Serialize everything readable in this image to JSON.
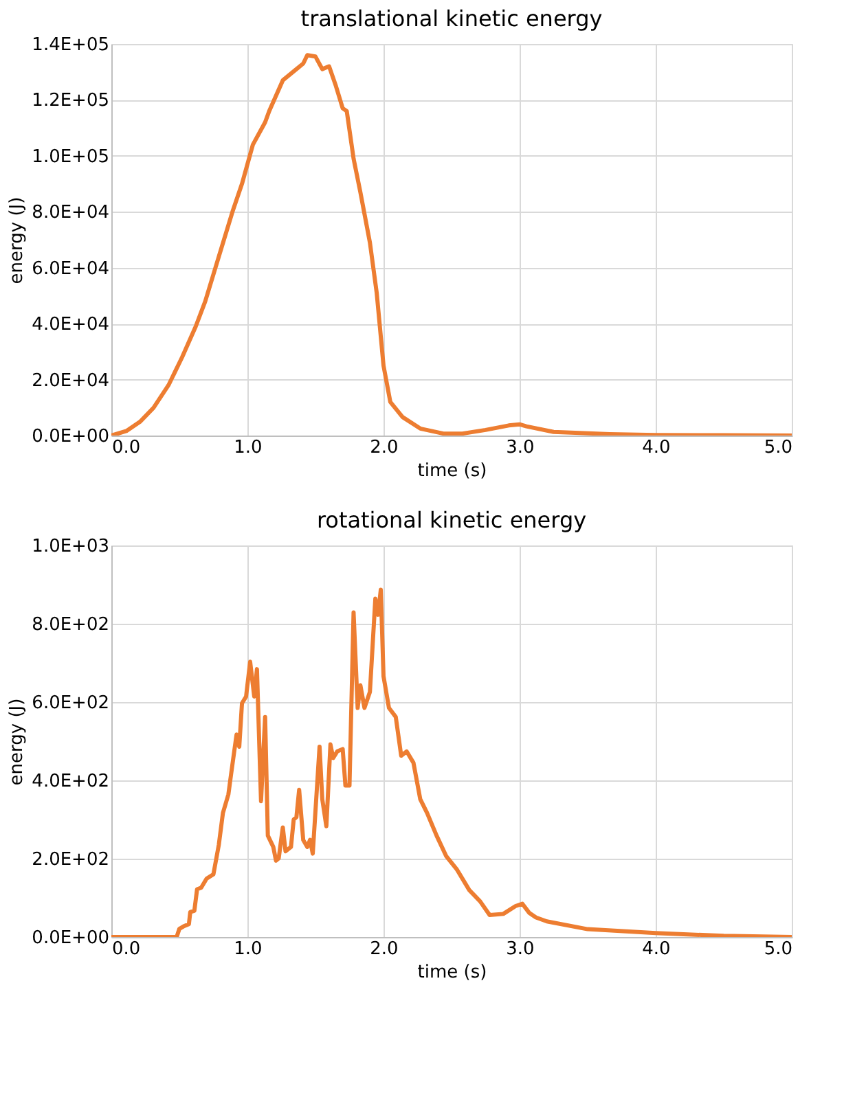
{
  "chart_data": [
    {
      "type": "line",
      "title": "translational kinetic energy",
      "xlabel": "time (s)",
      "ylabel": "energy (J)",
      "grid": true,
      "xlim": [
        0,
        5
      ],
      "ylim": [
        0,
        140000
      ],
      "xticks": [
        {
          "value": 0,
          "label": "0.0"
        },
        {
          "value": 1,
          "label": "1.0"
        },
        {
          "value": 2,
          "label": "2.0"
        },
        {
          "value": 3,
          "label": "3.0"
        },
        {
          "value": 4,
          "label": "4.0"
        },
        {
          "value": 5,
          "label": "5.0"
        }
      ],
      "yticks": [
        {
          "value": 0,
          "label": "0.0E+00"
        },
        {
          "value": 20000,
          "label": "2.0E+04"
        },
        {
          "value": 40000,
          "label": "4.0E+04"
        },
        {
          "value": 60000,
          "label": "6.0E+04"
        },
        {
          "value": 80000,
          "label": "8.0E+04"
        },
        {
          "value": 100000,
          "label": "1.0E+05"
        },
        {
          "value": 120000,
          "label": "1.2E+05"
        },
        {
          "value": 140000,
          "label": "1.4E+05"
        }
      ],
      "series": [
        {
          "color": "#ed7d31",
          "x": [
            0,
            0.11,
            0.21,
            0.31,
            0.42,
            0.52,
            0.62,
            0.69,
            0.79,
            0.89,
            0.96,
            1.04,
            1.13,
            1.16,
            1.26,
            1.36,
            1.41,
            1.44,
            1.5,
            1.55,
            1.6,
            1.65,
            1.7,
            1.73,
            1.78,
            1.83,
            1.9,
            1.95,
            2.0,
            2.05,
            2.14,
            2.27,
            2.44,
            2.58,
            2.75,
            2.92,
            3.0,
            3.05,
            3.25,
            3.66,
            4.0,
            4.5,
            5.0
          ],
          "values": [
            0,
            1600,
            4900,
            9900,
            18000,
            28000,
            39000,
            48000,
            64000,
            80000,
            90000,
            104000,
            112000,
            116000,
            127000,
            131000,
            133000,
            136000,
            135500,
            131000,
            132000,
            125000,
            117000,
            116000,
            99000,
            87000,
            69000,
            51000,
            25000,
            12000,
            6600,
            2500,
            700,
            700,
            2000,
            3600,
            4000,
            3300,
            1300,
            500,
            200,
            100,
            0
          ]
        }
      ]
    },
    {
      "type": "line",
      "title": "rotational kinetic energy",
      "xlabel": "time (s)",
      "ylabel": "energy (J)",
      "grid": true,
      "xlim": [
        0,
        5
      ],
      "ylim": [
        0,
        1000
      ],
      "xticks": [
        {
          "value": 0,
          "label": "0.0"
        },
        {
          "value": 1,
          "label": "1.0"
        },
        {
          "value": 2,
          "label": "2.0"
        },
        {
          "value": 3,
          "label": "3.0"
        },
        {
          "value": 4,
          "label": "4.0"
        },
        {
          "value": 5,
          "label": "5.0"
        }
      ],
      "yticks": [
        {
          "value": 0,
          "label": "0.0E+00"
        },
        {
          "value": 200,
          "label": "2.0E+02"
        },
        {
          "value": 400,
          "label": "4.0E+02"
        },
        {
          "value": 600,
          "label": "6.0E+02"
        },
        {
          "value": 800,
          "label": "8.0E+02"
        },
        {
          "value": 1000,
          "label": "1.0E+03"
        }
      ],
      "series": [
        {
          "color": "#ed7d31",
          "x": [
            0,
            0.48,
            0.5,
            0.53,
            0.57,
            0.58,
            0.61,
            0.63,
            0.66,
            0.7,
            0.75,
            0.79,
            0.82,
            0.86,
            0.88,
            0.92,
            0.94,
            0.96,
            0.99,
            1.02,
            1.05,
            1.07,
            1.1,
            1.13,
            1.15,
            1.19,
            1.21,
            1.23,
            1.26,
            1.28,
            1.32,
            1.34,
            1.36,
            1.38,
            1.41,
            1.44,
            1.46,
            1.48,
            1.53,
            1.55,
            1.58,
            1.61,
            1.63,
            1.66,
            1.7,
            1.72,
            1.75,
            1.78,
            1.81,
            1.83,
            1.86,
            1.9,
            1.94,
            1.96,
            1.98,
            2.0,
            2.04,
            2.09,
            2.13,
            2.17,
            2.22,
            2.27,
            2.32,
            2.39,
            2.46,
            2.54,
            2.63,
            2.71,
            2.78,
            2.88,
            2.97,
            3.02,
            3.07,
            3.12,
            3.2,
            3.5,
            4.0,
            4.5,
            5.0
          ],
          "values": [
            0,
            0,
            21,
            27,
            33,
            64,
            67,
            122,
            126,
            149,
            160,
            236,
            317,
            364,
            416,
            517,
            486,
            597,
            614,
            703,
            614,
            684,
            347,
            562,
            259,
            230,
            195,
            201,
            280,
            219,
            230,
            300,
            306,
            376,
            248,
            230,
            248,
            213,
            486,
            352,
            283,
            492,
            457,
            474,
            480,
            387,
            387,
            829,
            585,
            643,
            585,
            626,
            864,
            823,
            887,
            666,
            585,
            562,
            463,
            474,
            445,
            352,
            317,
            259,
            207,
            172,
            120,
            91,
            56,
            59,
            79,
            85,
            62,
            50,
            40,
            20,
            10,
            3,
            0
          ]
        }
      ]
    }
  ]
}
